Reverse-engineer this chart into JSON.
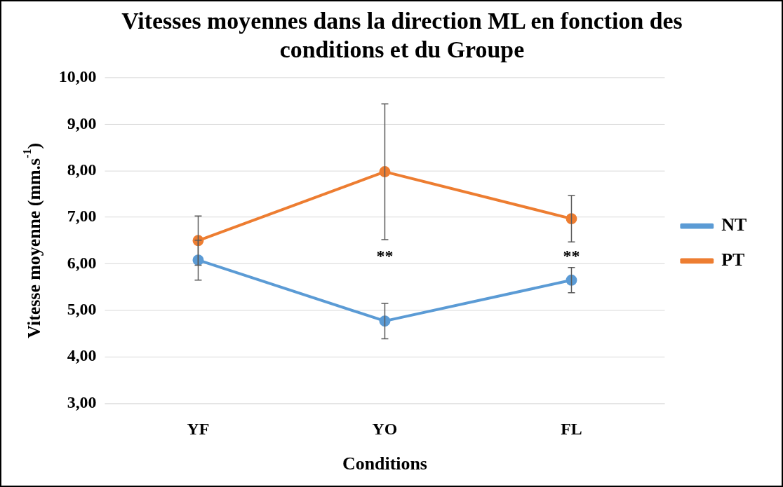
{
  "chart_data": {
    "type": "line",
    "title": "Vitesses moyennes dans la direction ML en fonction des conditions et du Groupe",
    "xlabel": "Conditions",
    "ylabel": "Vitesse moyenne (mm.s$^{-1}$)",
    "categories": [
      "YF",
      "YO",
      "FL"
    ],
    "series": [
      {
        "name": "NT",
        "color": "#5b9bd5",
        "values": [
          6.08,
          4.77,
          5.65
        ],
        "errors": [
          0.43,
          0.38,
          0.27
        ]
      },
      {
        "name": "PT",
        "color": "#ed7d31",
        "values": [
          6.5,
          7.98,
          6.97
        ],
        "errors": [
          0.53,
          1.46,
          0.5
        ]
      }
    ],
    "ylim": [
      3,
      10
    ],
    "yticks": [
      {
        "value": 3,
        "label": "3,00"
      },
      {
        "value": 4,
        "label": "4,00"
      },
      {
        "value": 5,
        "label": "5,00"
      },
      {
        "value": 6,
        "label": "6,00"
      },
      {
        "value": 7,
        "label": "7,00"
      },
      {
        "value": 8,
        "label": "8,00"
      },
      {
        "value": 9,
        "label": "9,00"
      },
      {
        "value": 10,
        "label": "10,00"
      }
    ],
    "grid": "y",
    "legend": "right",
    "marker": "circle",
    "line_style": "solid",
    "annotations": [
      "**",
      "**"
    ]
  }
}
